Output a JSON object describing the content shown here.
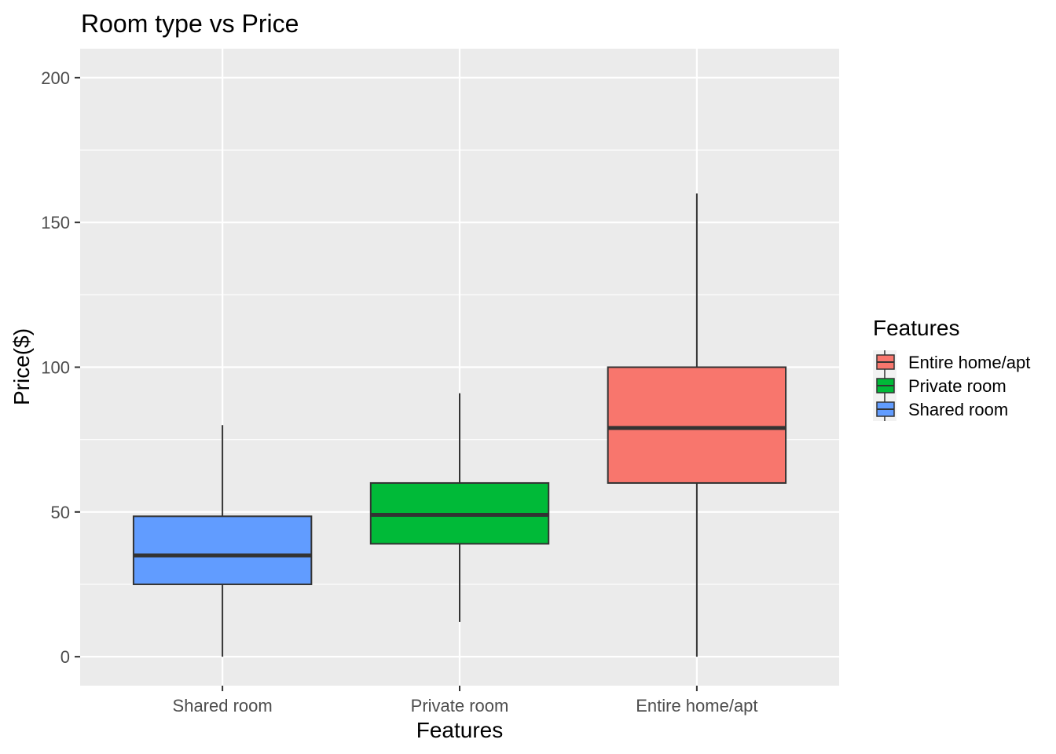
{
  "chart_data": {
    "type": "boxplot",
    "title": "Room type vs Price",
    "xlabel": "Features",
    "ylabel": "Price($)",
    "ylim": [
      -10,
      210
    ],
    "yticks": [
      0,
      50,
      100,
      150,
      200
    ],
    "grid": true,
    "legend_position": "right",
    "categories": [
      "Shared room",
      "Private room",
      "Entire home/apt"
    ],
    "boxes": [
      {
        "category": "Shared room",
        "whisker_low": 0,
        "q1": 25,
        "median": 35,
        "q3": 48.5,
        "whisker_high": 80,
        "color": "#619CFF"
      },
      {
        "category": "Private room",
        "whisker_low": 12,
        "q1": 39,
        "median": 49,
        "q3": 60,
        "whisker_high": 91,
        "color": "#00BA38"
      },
      {
        "category": "Entire home/apt",
        "whisker_low": 0,
        "q1": 60,
        "median": 79,
        "q3": 100,
        "whisker_high": 160,
        "color": "#F8766D"
      }
    ],
    "legend": {
      "title": "Features",
      "entries": [
        {
          "label": "Entire home/apt",
          "color": "#F8766D"
        },
        {
          "label": "Private room",
          "color": "#00BA38"
        },
        {
          "label": "Shared room",
          "color": "#619CFF"
        }
      ]
    }
  }
}
